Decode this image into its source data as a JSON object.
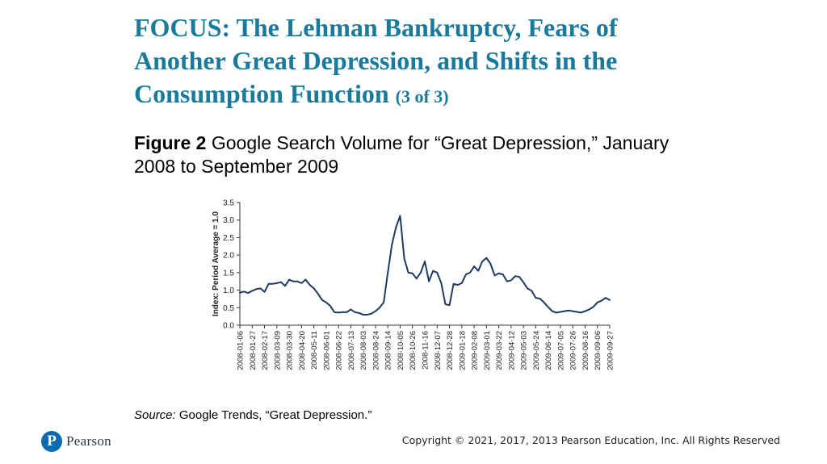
{
  "slide": {
    "title_main": "FOCUS: The Lehman Bankruptcy, Fears of Another Great Depression, and Shifts in the Consumption Function",
    "title_suffix": "(3 of 3)",
    "figure_label": "Figure 2",
    "figure_caption": "Google Search Volume for “Great Depression,” January 2008 to September 2009",
    "source_label": "Source:",
    "source_text": "Google Trends, “Great Depression.”",
    "logo_mark": "P",
    "logo_text": "Pearson",
    "copyright": "Copyright © 2021, 2017, 2013 Pearson Education, Inc. All Rights Reserved"
  },
  "colors": {
    "title": "#1a7a9b",
    "line": "#1f3b63",
    "logo": "#0b6bb0"
  },
  "chart_data": {
    "type": "line",
    "title": "",
    "ylabel": "Index: Period Average = 1.0",
    "xlabel": "",
    "ylim": [
      0,
      3.5
    ],
    "yticks": [
      0.0,
      0.5,
      1.0,
      1.5,
      2.0,
      2.5,
      3.0,
      3.5
    ],
    "ytick_labels": [
      "0.0",
      "0.5",
      "1.0",
      "1.5",
      "2.0",
      "2.5",
      "3.0",
      "3.5"
    ],
    "x_tick_labels": [
      "2008-01-06",
      "2008-01-27",
      "2008-02-17",
      "2008-03-09",
      "2008-03-30",
      "2008-04-20",
      "2008-05-11",
      "2008-06-01",
      "2008-06-22",
      "2008-07-13",
      "2008-08-03",
      "2008-08-24",
      "2008-09-14",
      "2008-10-05",
      "2008-10-26",
      "2008-11-16",
      "2008-12-07",
      "2008-12-28",
      "2009-01-18",
      "2009-02-08",
      "2009-03-01",
      "2009-03-22",
      "2009-04-12",
      "2009-05-03",
      "2009-05-24",
      "2009-06-14",
      "2009-07-05",
      "2009-07-26",
      "2009-08-16",
      "2009-09-06",
      "2009-09-27"
    ],
    "grid": false,
    "series": [
      {
        "values": [
          0.93,
          0.96,
          0.92,
          0.98,
          1.03,
          1.05,
          0.95,
          1.18,
          1.18,
          1.2,
          1.23,
          1.12,
          1.3,
          1.25,
          1.25,
          1.2,
          1.3,
          1.15,
          1.05,
          0.9,
          0.72,
          0.65,
          0.55,
          0.37,
          0.36,
          0.37,
          0.37,
          0.45,
          0.37,
          0.35,
          0.3,
          0.3,
          0.33,
          0.4,
          0.5,
          0.65,
          1.5,
          2.3,
          2.8,
          3.12,
          1.9,
          1.5,
          1.48,
          1.33,
          1.5,
          1.82,
          1.25,
          1.55,
          1.5,
          1.2,
          0.6,
          0.57,
          1.18,
          1.15,
          1.2,
          1.45,
          1.5,
          1.68,
          1.55,
          1.82,
          1.92,
          1.75,
          1.42,
          1.48,
          1.45,
          1.25,
          1.28,
          1.4,
          1.38,
          1.22,
          1.05,
          0.98,
          0.78,
          0.76,
          0.65,
          0.52,
          0.4,
          0.36,
          0.38,
          0.4,
          0.42,
          0.4,
          0.38,
          0.36,
          0.4,
          0.45,
          0.52,
          0.65,
          0.7,
          0.78,
          0.72
        ]
      }
    ]
  }
}
